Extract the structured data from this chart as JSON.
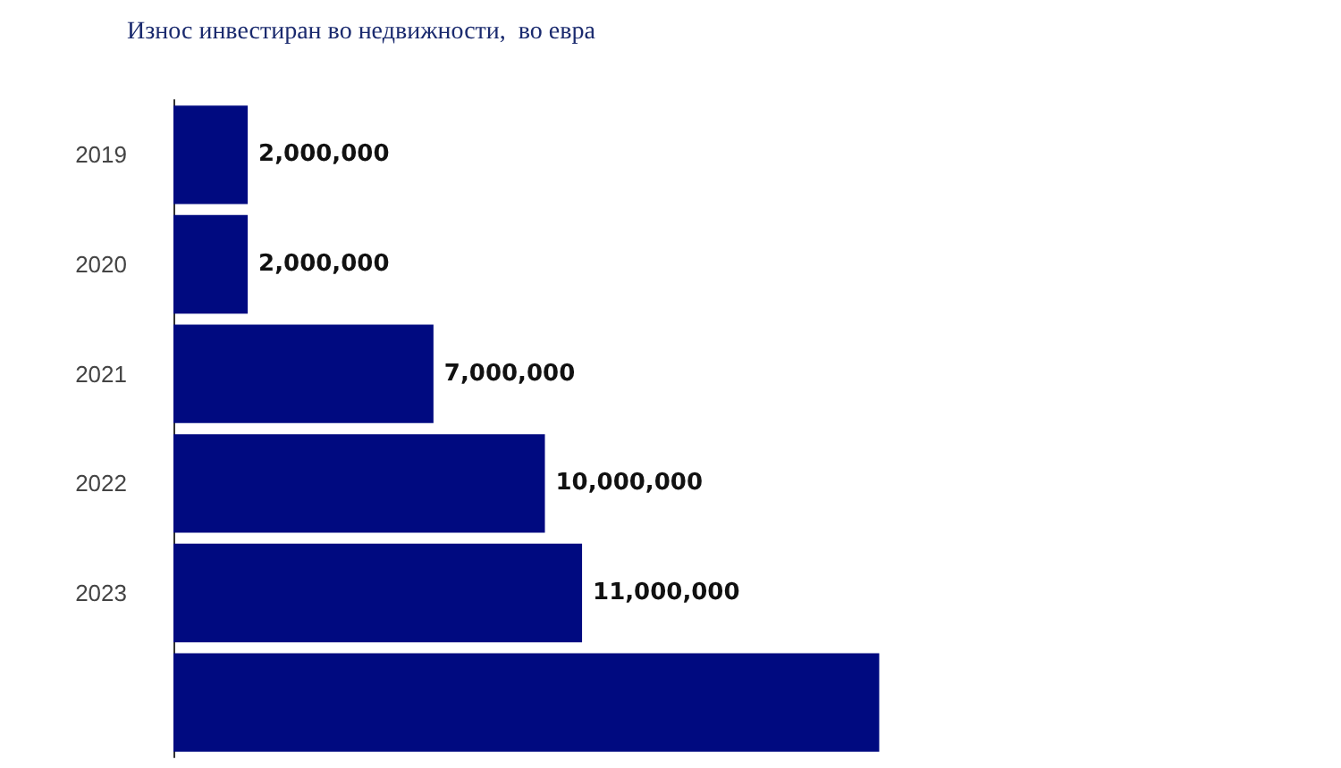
{
  "chart_data": {
    "type": "bar",
    "orientation": "horizontal",
    "title": "Износ инвестиран во недвижности,  во евра",
    "categories": [
      "2019",
      "2020",
      "2021",
      "2022",
      "2023",
      null
    ],
    "values": [
      2000000,
      2000000,
      7000000,
      10000000,
      11000000,
      19000000
    ],
    "value_labels": [
      "2,000,000",
      "2,000,000",
      "7,000,000",
      "10,000,000",
      "11,000,000",
      null
    ],
    "color": "#000a80"
  }
}
